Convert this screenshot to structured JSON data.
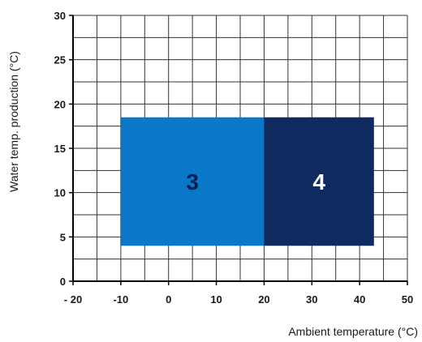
{
  "chart_data": {
    "type": "area",
    "xlabel": "Ambient temperature (°C)",
    "ylabel": "Water temp. production (°C)",
    "xlim": [
      -20,
      50
    ],
    "ylim": [
      0,
      30
    ],
    "x_ticks": [
      "- 20",
      "-10",
      "0",
      "10",
      "20",
      "30",
      "40",
      "50"
    ],
    "y_ticks": [
      "0",
      "5",
      "10",
      "15",
      "20",
      "25",
      "30"
    ],
    "x_minor_step": 5,
    "y_minor_step": 2.5,
    "grid": true,
    "regions": [
      {
        "label": "3",
        "x_range": [
          -10,
          20
        ],
        "y_range": [
          4,
          18.5
        ],
        "fill": "#0a77c9",
        "text_color": "#0a1f4d"
      },
      {
        "label": "4",
        "x_range": [
          20,
          43
        ],
        "y_range": [
          4,
          18.5
        ],
        "fill": "#0f2a5e",
        "text_color": "#ffffff"
      }
    ]
  }
}
